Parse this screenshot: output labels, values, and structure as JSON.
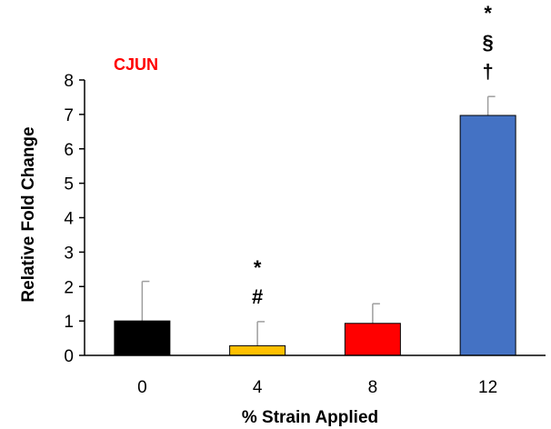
{
  "chart_data": {
    "type": "bar",
    "title": "CJUN",
    "title_color": "#ff0000",
    "xlabel": "% Strain Applied",
    "ylabel": "Relative Fold Change",
    "ylim": [
      0,
      8
    ],
    "yticks": [
      "0",
      "1",
      "2",
      "3",
      "4",
      "5",
      "6",
      "7",
      "8"
    ],
    "grid": false,
    "categories": [
      "0",
      "4",
      "8",
      "12"
    ],
    "values": [
      1.0,
      0.28,
      0.93,
      6.97
    ],
    "errors": [
      1.15,
      0.7,
      0.57,
      0.55
    ],
    "colors": [
      "#000000",
      "#ffc000",
      "#ff0000",
      "#4472c4"
    ],
    "annotations": [
      [],
      [
        "*",
        "#"
      ],
      [],
      [
        "*",
        "§",
        "†"
      ]
    ]
  }
}
